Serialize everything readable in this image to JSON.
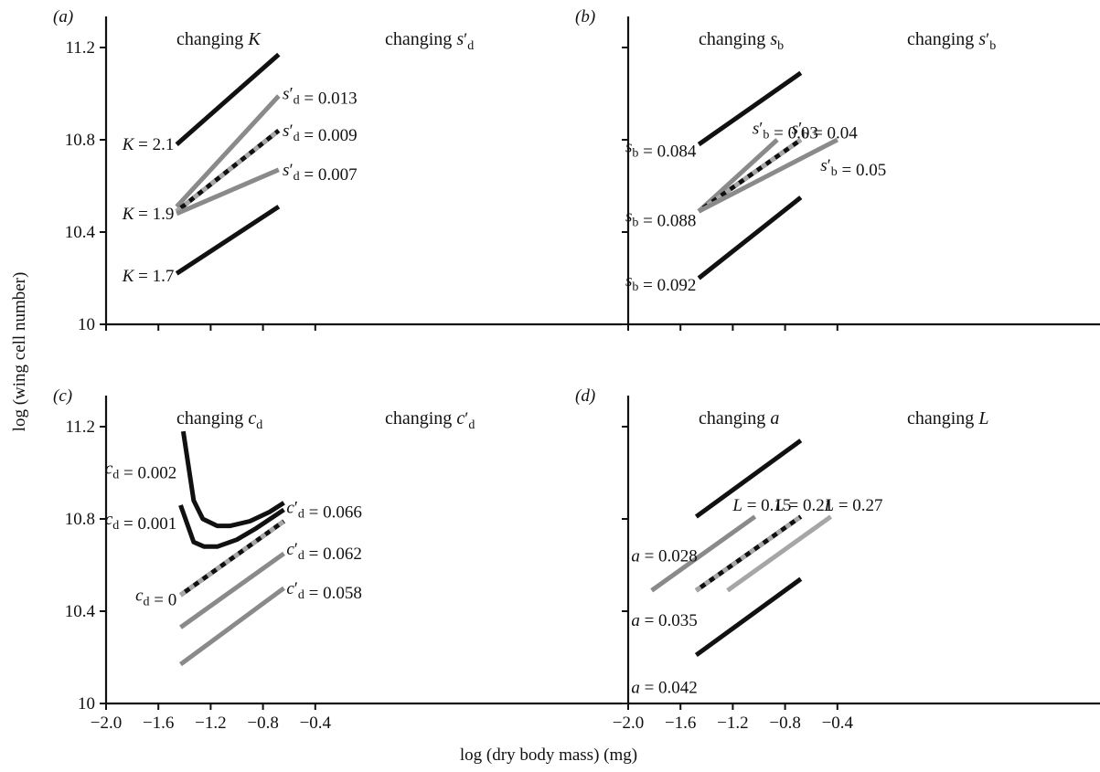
{
  "colors": {
    "black": "#111111",
    "grey": "#8a8a8a",
    "lightgrey": "#a6a6a6"
  },
  "chart_data": {
    "type": "line",
    "xlabel": "log (dry body mass) (mg)",
    "ylabel": "log (wing cell number)",
    "xlim": [
      -2.0,
      0.0
    ],
    "ylim": [
      10.0,
      11.45
    ],
    "xticks": [
      -2.0,
      -1.6,
      -1.2,
      -0.8,
      -0.4
    ],
    "yticks": [
      10.0,
      10.4,
      10.8,
      11.2
    ],
    "panels": [
      {
        "tag": "(a)",
        "show_x_tick_labels": false,
        "show_y_tick_labels": true,
        "headers": {
          "left": [
            {
              "t": "changing "
            },
            {
              "t": "K",
              "i": true
            }
          ],
          "right": [
            {
              "t": "changing "
            },
            {
              "t": "s",
              "i": true
            },
            {
              "t": "′",
              "sup": true
            },
            {
              "t": "d",
              "sub": true
            }
          ]
        },
        "series": [
          {
            "color": "black",
            "points": [
              [
                -1.46,
                10.78
              ],
              [
                -0.68,
                11.17
              ]
            ]
          },
          {
            "color": "grey",
            "points": [
              [
                -1.46,
                10.51
              ],
              [
                -0.68,
                10.99
              ]
            ]
          },
          {
            "color": "black",
            "dashed": true,
            "points": [
              [
                -1.46,
                10.49
              ],
              [
                -0.68,
                10.84
              ]
            ]
          },
          {
            "color": "grey",
            "points": [
              [
                -1.46,
                10.48
              ],
              [
                -0.68,
                10.67
              ]
            ]
          },
          {
            "color": "black",
            "points": [
              [
                -1.46,
                10.22
              ],
              [
                -0.68,
                10.51
              ]
            ]
          }
        ],
        "labels": [
          {
            "anchor": "end",
            "x": -1.48,
            "y": 10.78,
            "parts": [
              {
                "t": "K",
                "i": true
              },
              {
                "t": " = 2.1"
              }
            ]
          },
          {
            "anchor": "end",
            "x": -1.48,
            "y": 10.48,
            "parts": [
              {
                "t": "K",
                "i": true
              },
              {
                "t": " = 1.9"
              }
            ]
          },
          {
            "anchor": "end",
            "x": -1.48,
            "y": 10.21,
            "parts": [
              {
                "t": "K",
                "i": true
              },
              {
                "t": " = 1.7"
              }
            ]
          },
          {
            "anchor": "start",
            "x": -0.65,
            "y": 11.0,
            "parts": [
              {
                "t": "s",
                "i": true
              },
              {
                "t": "′",
                "sup": true
              },
              {
                "t": "d",
                "sub": true
              },
              {
                "t": " = 0.013"
              }
            ]
          },
          {
            "anchor": "start",
            "x": -0.65,
            "y": 10.84,
            "parts": [
              {
                "t": "s",
                "i": true
              },
              {
                "t": "′",
                "sup": true
              },
              {
                "t": "d",
                "sub": true
              },
              {
                "t": " = 0.009"
              }
            ]
          },
          {
            "anchor": "start",
            "x": -0.65,
            "y": 10.67,
            "parts": [
              {
                "t": "s",
                "i": true
              },
              {
                "t": "′",
                "sup": true
              },
              {
                "t": "d",
                "sub": true
              },
              {
                "t": " = 0.007"
              }
            ]
          }
        ]
      },
      {
        "tag": "(b)",
        "show_x_tick_labels": false,
        "show_y_tick_labels": false,
        "headers": {
          "left": [
            {
              "t": "changing "
            },
            {
              "t": "s",
              "i": true
            },
            {
              "t": "b",
              "sub": true
            }
          ],
          "right": [
            {
              "t": "changing "
            },
            {
              "t": "s",
              "i": true
            },
            {
              "t": "′",
              "sup": true
            },
            {
              "t": "b",
              "sub": true
            }
          ]
        },
        "series": [
          {
            "color": "black",
            "points": [
              [
                -1.46,
                10.78
              ],
              [
                -0.68,
                11.09
              ]
            ]
          },
          {
            "color": "grey",
            "points": [
              [
                -1.46,
                10.49
              ],
              [
                -0.86,
                10.8
              ]
            ]
          },
          {
            "color": "black",
            "dashed": true,
            "points": [
              [
                -1.46,
                10.49
              ],
              [
                -0.68,
                10.8
              ]
            ]
          },
          {
            "color": "grey",
            "points": [
              [
                -1.46,
                10.49
              ],
              [
                -0.4,
                10.8
              ]
            ]
          },
          {
            "color": "black",
            "points": [
              [
                -1.46,
                10.2
              ],
              [
                -0.68,
                10.55
              ]
            ]
          }
        ],
        "labels": [
          {
            "anchor": "end",
            "x": -1.48,
            "y": 10.77,
            "parts": [
              {
                "t": "s",
                "i": true
              },
              {
                "t": "b",
                "sub": true
              },
              {
                "t": " = 0.084"
              }
            ]
          },
          {
            "anchor": "end",
            "x": -1.48,
            "y": 10.47,
            "parts": [
              {
                "t": "s",
                "i": true
              },
              {
                "t": "b",
                "sub": true
              },
              {
                "t": " = 0.088"
              }
            ]
          },
          {
            "anchor": "end",
            "x": -1.48,
            "y": 10.19,
            "parts": [
              {
                "t": "s",
                "i": true
              },
              {
                "t": "b",
                "sub": true
              },
              {
                "t": " = 0.092"
              }
            ]
          },
          {
            "anchor": "start",
            "x": -1.05,
            "y": 10.85,
            "parts": [
              {
                "t": "s",
                "i": true
              },
              {
                "t": "′",
                "sup": true
              },
              {
                "t": "b",
                "sub": true
              },
              {
                "t": " = 0.03"
              }
            ]
          },
          {
            "anchor": "start",
            "x": -0.75,
            "y": 10.85,
            "parts": [
              {
                "t": "s",
                "i": true
              },
              {
                "t": "′",
                "sup": true
              },
              {
                "t": "b",
                "sub": true
              },
              {
                "t": " = 0.04"
              }
            ]
          },
          {
            "anchor": "start",
            "x": -0.53,
            "y": 10.69,
            "parts": [
              {
                "t": "s",
                "i": true
              },
              {
                "t": "′",
                "sup": true
              },
              {
                "t": "b",
                "sub": true
              },
              {
                "t": " = 0.05"
              }
            ]
          }
        ]
      },
      {
        "tag": "(c)",
        "show_x_tick_labels": true,
        "show_y_tick_labels": true,
        "headers": {
          "left": [
            {
              "t": "changing "
            },
            {
              "t": "c",
              "i": true
            },
            {
              "t": "d",
              "sub": true
            }
          ],
          "right": [
            {
              "t": "changing "
            },
            {
              "t": "c",
              "i": true
            },
            {
              "t": "′",
              "sup": true
            },
            {
              "t": "d",
              "sub": true
            }
          ]
        },
        "series": [
          {
            "color": "black",
            "points": [
              [
                -1.41,
                11.18
              ],
              [
                -1.33,
                10.88
              ],
              [
                -1.26,
                10.8
              ],
              [
                -1.15,
                10.77
              ],
              [
                -1.05,
                10.77
              ],
              [
                -0.9,
                10.79
              ],
              [
                -0.75,
                10.83
              ],
              [
                -0.64,
                10.87
              ]
            ]
          },
          {
            "color": "black",
            "points": [
              [
                -1.43,
                10.86
              ],
              [
                -1.33,
                10.7
              ],
              [
                -1.25,
                10.68
              ],
              [
                -1.15,
                10.68
              ],
              [
                -1.0,
                10.71
              ],
              [
                -0.85,
                10.76
              ],
              [
                -0.64,
                10.84
              ]
            ]
          },
          {
            "color": "black",
            "dashed": true,
            "points": [
              [
                -1.43,
                10.47
              ],
              [
                -0.64,
                10.79
              ]
            ]
          },
          {
            "color": "grey",
            "points": [
              [
                -1.43,
                10.33
              ],
              [
                -0.64,
                10.65
              ]
            ]
          },
          {
            "color": "grey",
            "points": [
              [
                -1.43,
                10.17
              ],
              [
                -0.64,
                10.5
              ]
            ]
          }
        ],
        "labels": [
          {
            "anchor": "end",
            "x": -1.46,
            "y": 11.02,
            "parts": [
              {
                "t": "c",
                "i": true
              },
              {
                "t": "d",
                "sub": true
              },
              {
                "t": " = 0.002"
              }
            ]
          },
          {
            "anchor": "end",
            "x": -1.46,
            "y": 10.8,
            "parts": [
              {
                "t": "c",
                "i": true
              },
              {
                "t": "d",
                "sub": true
              },
              {
                "t": " = 0.001"
              }
            ]
          },
          {
            "anchor": "end",
            "x": -1.46,
            "y": 10.47,
            "parts": [
              {
                "t": "c",
                "i": true
              },
              {
                "t": "d",
                "sub": true
              },
              {
                "t": " = 0"
              }
            ]
          },
          {
            "anchor": "start",
            "x": -0.62,
            "y": 10.85,
            "parts": [
              {
                "t": "c",
                "i": true
              },
              {
                "t": "′",
                "sup": true
              },
              {
                "t": "d",
                "sub": true
              },
              {
                "t": " = 0.066"
              }
            ]
          },
          {
            "anchor": "start",
            "x": -0.62,
            "y": 10.67,
            "parts": [
              {
                "t": "c",
                "i": true
              },
              {
                "t": "′",
                "sup": true
              },
              {
                "t": "d",
                "sub": true
              },
              {
                "t": " = 0.062"
              }
            ]
          },
          {
            "anchor": "start",
            "x": -0.62,
            "y": 10.5,
            "parts": [
              {
                "t": "c",
                "i": true
              },
              {
                "t": "′",
                "sup": true
              },
              {
                "t": "d",
                "sub": true
              },
              {
                "t": " = 0.058"
              }
            ]
          }
        ]
      },
      {
        "tag": "(d)",
        "show_x_tick_labels": true,
        "show_y_tick_labels": false,
        "headers": {
          "left": [
            {
              "t": "changing "
            },
            {
              "t": "a",
              "i": true
            }
          ],
          "right": [
            {
              "t": "changing "
            },
            {
              "t": "L",
              "i": true
            }
          ]
        },
        "series": [
          {
            "color": "black",
            "points": [
              [
                -1.48,
                10.81
              ],
              [
                -0.68,
                11.14
              ]
            ]
          },
          {
            "color": "grey",
            "points": [
              [
                -1.82,
                10.49
              ],
              [
                -1.03,
                10.81
              ]
            ]
          },
          {
            "color": "black",
            "dashed": true,
            "points": [
              [
                -1.48,
                10.49
              ],
              [
                -0.68,
                10.81
              ]
            ]
          },
          {
            "color": "lightgrey",
            "points": [
              [
                -1.24,
                10.49
              ],
              [
                -0.45,
                10.81
              ]
            ]
          },
          {
            "color": "black",
            "points": [
              [
                -1.48,
                10.21
              ],
              [
                -0.68,
                10.54
              ]
            ]
          }
        ],
        "labels": [
          {
            "anchor": "end",
            "x": -1.47,
            "y": 10.64,
            "parts": [
              {
                "t": "a",
                "i": true
              },
              {
                "t": " = 0.028"
              }
            ]
          },
          {
            "anchor": "end",
            "x": -1.47,
            "y": 10.36,
            "parts": [
              {
                "t": "a",
                "i": true
              },
              {
                "t": " = 0.035"
              }
            ]
          },
          {
            "anchor": "end",
            "x": -1.47,
            "y": 10.07,
            "parts": [
              {
                "t": "a",
                "i": true
              },
              {
                "t": " = 0.042"
              }
            ]
          },
          {
            "anchor": "start",
            "x": -1.2,
            "y": 10.86,
            "parts": [
              {
                "t": "L",
                "i": true
              },
              {
                "t": " = 0.15"
              }
            ]
          },
          {
            "anchor": "start",
            "x": -0.88,
            "y": 10.86,
            "parts": [
              {
                "t": "L",
                "i": true
              },
              {
                "t": " = 0.21"
              }
            ]
          },
          {
            "anchor": "start",
            "x": -0.5,
            "y": 10.86,
            "parts": [
              {
                "t": "L",
                "i": true
              },
              {
                "t": " = 0.27"
              }
            ]
          }
        ]
      }
    ]
  }
}
